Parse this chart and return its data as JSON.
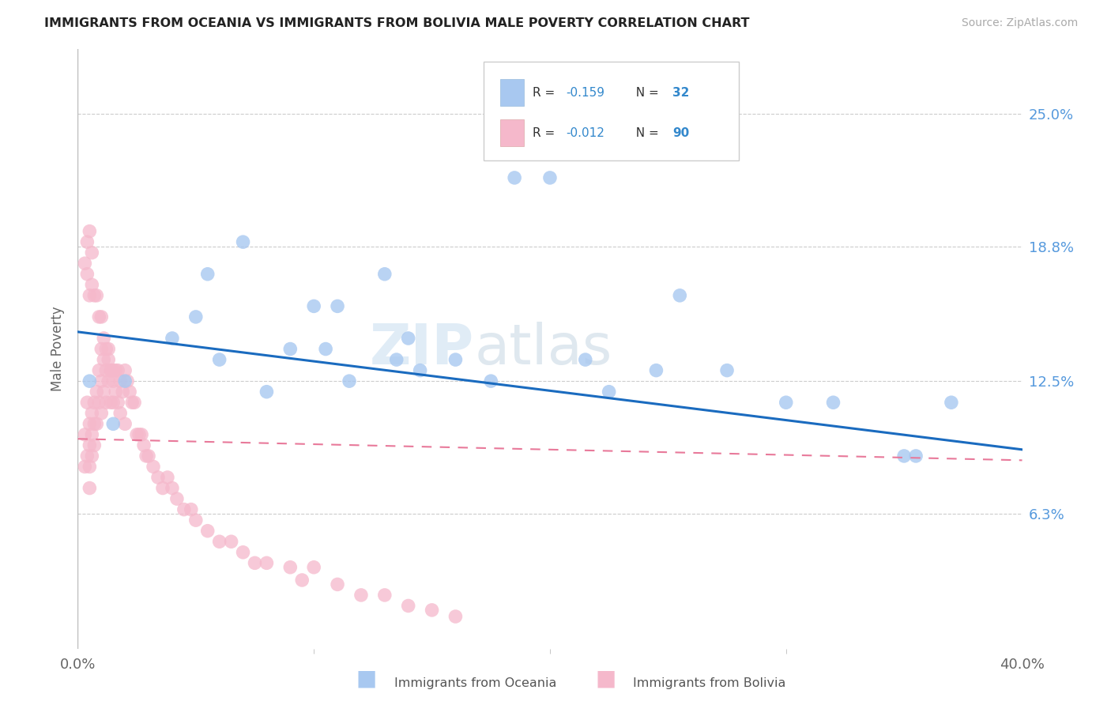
{
  "title": "IMMIGRANTS FROM OCEANIA VS IMMIGRANTS FROM BOLIVIA MALE POVERTY CORRELATION CHART",
  "source": "Source: ZipAtlas.com",
  "ylabel": "Male Poverty",
  "ytick_labels": [
    "6.3%",
    "12.5%",
    "18.8%",
    "25.0%"
  ],
  "ytick_values": [
    0.063,
    0.125,
    0.188,
    0.25
  ],
  "xmin": 0.0,
  "xmax": 0.4,
  "ymin": 0.0,
  "ymax": 0.28,
  "legend_r1": "R = -0.159",
  "legend_n1": "N = 32",
  "legend_r2": "R = -0.012",
  "legend_n2": "N = 90",
  "color_oceania": "#a8c8f0",
  "color_bolivia": "#f5b8cb",
  "color_oceania_line": "#1a6bbf",
  "color_bolivia_line": "#e8799a",
  "watermark_zip": "ZIP",
  "watermark_atlas": "atlas",
  "legend_label1": "Immigrants from Oceania",
  "legend_label2": "Immigrants from Bolivia",
  "oceania_line_start_y": 0.148,
  "oceania_line_end_y": 0.093,
  "bolivia_line_start_y": 0.098,
  "bolivia_line_end_y": 0.088,
  "oceania_x": [
    0.005,
    0.015,
    0.02,
    0.04,
    0.05,
    0.055,
    0.06,
    0.07,
    0.08,
    0.09,
    0.1,
    0.105,
    0.11,
    0.115,
    0.13,
    0.135,
    0.14,
    0.145,
    0.16,
    0.175,
    0.185,
    0.2,
    0.215,
    0.225,
    0.245,
    0.255,
    0.275,
    0.3,
    0.32,
    0.35,
    0.355,
    0.37
  ],
  "oceania_y": [
    0.125,
    0.105,
    0.125,
    0.145,
    0.155,
    0.175,
    0.135,
    0.19,
    0.12,
    0.14,
    0.16,
    0.14,
    0.16,
    0.125,
    0.175,
    0.135,
    0.145,
    0.13,
    0.135,
    0.125,
    0.22,
    0.22,
    0.135,
    0.12,
    0.13,
    0.165,
    0.13,
    0.115,
    0.115,
    0.09,
    0.09,
    0.115
  ],
  "bolivia_x": [
    0.003,
    0.003,
    0.004,
    0.004,
    0.005,
    0.005,
    0.005,
    0.005,
    0.006,
    0.006,
    0.006,
    0.007,
    0.007,
    0.007,
    0.008,
    0.008,
    0.009,
    0.009,
    0.01,
    0.01,
    0.01,
    0.011,
    0.011,
    0.012,
    0.012,
    0.013,
    0.013,
    0.014,
    0.014,
    0.015,
    0.015,
    0.016,
    0.017,
    0.018,
    0.019,
    0.02,
    0.021,
    0.022,
    0.023,
    0.024,
    0.025,
    0.026,
    0.027,
    0.028,
    0.029,
    0.03,
    0.032,
    0.034,
    0.036,
    0.038,
    0.04,
    0.042,
    0.045,
    0.048,
    0.05,
    0.055,
    0.06,
    0.065,
    0.07,
    0.075,
    0.08,
    0.09,
    0.095,
    0.1,
    0.11,
    0.12,
    0.13,
    0.14,
    0.15,
    0.16,
    0.003,
    0.004,
    0.004,
    0.005,
    0.005,
    0.006,
    0.006,
    0.007,
    0.008,
    0.009,
    0.01,
    0.011,
    0.012,
    0.013,
    0.014,
    0.015,
    0.016,
    0.017,
    0.018,
    0.02
  ],
  "bolivia_y": [
    0.1,
    0.085,
    0.115,
    0.09,
    0.105,
    0.095,
    0.085,
    0.075,
    0.11,
    0.1,
    0.09,
    0.115,
    0.105,
    0.095,
    0.12,
    0.105,
    0.13,
    0.115,
    0.14,
    0.125,
    0.11,
    0.135,
    0.12,
    0.13,
    0.115,
    0.14,
    0.125,
    0.13,
    0.115,
    0.125,
    0.115,
    0.13,
    0.13,
    0.125,
    0.12,
    0.13,
    0.125,
    0.12,
    0.115,
    0.115,
    0.1,
    0.1,
    0.1,
    0.095,
    0.09,
    0.09,
    0.085,
    0.08,
    0.075,
    0.08,
    0.075,
    0.07,
    0.065,
    0.065,
    0.06,
    0.055,
    0.05,
    0.05,
    0.045,
    0.04,
    0.04,
    0.038,
    0.032,
    0.038,
    0.03,
    0.025,
    0.025,
    0.02,
    0.018,
    0.015,
    0.18,
    0.19,
    0.175,
    0.195,
    0.165,
    0.185,
    0.17,
    0.165,
    0.165,
    0.155,
    0.155,
    0.145,
    0.14,
    0.135,
    0.13,
    0.13,
    0.12,
    0.115,
    0.11,
    0.105
  ]
}
